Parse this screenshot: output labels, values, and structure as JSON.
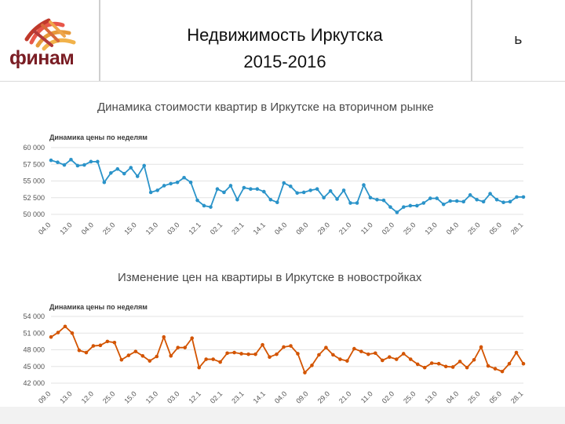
{
  "header": {
    "title_line1": "Недвижимость Иркутска",
    "title_line2": "2015-2016",
    "logo_text": "финам",
    "corner_glyph": "ь"
  },
  "colors": {
    "logo": "#7a1d24",
    "secondary_line": "#2a93c9",
    "new_build_line": "#d35400"
  },
  "chart_data": [
    {
      "type": "line",
      "title": "Динамика стоимости квартир в Иркутске на вторичном рынке",
      "subtitle": "Динамика цены по неделям",
      "ylim": [
        50000,
        60000
      ],
      "yticks": [
        "60 000",
        "57 500",
        "55 000",
        "52 500",
        "50 000"
      ],
      "xticks": [
        "04.0",
        "13.0",
        "04.0",
        "25.0",
        "15.0",
        "13.0",
        "03.0",
        "12.1",
        "02.1",
        "23.1",
        "14.1",
        "04.0",
        "08.0",
        "29.0",
        "21.0",
        "11.0",
        "02.0",
        "25.0",
        "13.0",
        "04.0",
        "25.0",
        "05.0",
        "28.1"
      ],
      "grid": true,
      "legend": "none",
      "series": [
        {
          "values": [
            58100,
            57800,
            57400,
            58200,
            57300,
            57400,
            57900,
            57900,
            54800,
            56200,
            56800,
            56100,
            57000,
            55700,
            57300,
            53300,
            53600,
            54300,
            54600,
            54800,
            55500,
            54800,
            52100,
            51300,
            51100,
            53800,
            53300,
            54300,
            52200,
            54000,
            53800,
            53800,
            53400,
            52200,
            51800,
            54700,
            54200,
            53200,
            53300,
            53600,
            53800,
            52500,
            53500,
            52300,
            53600,
            51700,
            51700,
            54400,
            52500,
            52200,
            52100,
            51100,
            50300,
            51100,
            51300,
            51300,
            51700,
            52400,
            52400,
            51500,
            52000,
            52000,
            51900,
            52900,
            52200,
            51900,
            53100,
            52200,
            51800,
            51900,
            52600,
            52600
          ]
        }
      ]
    },
    {
      "type": "line",
      "title": "Изменение цен на квартиры в Иркутске в новостройках",
      "subtitle": "Динамика цены по неделям",
      "ylim": [
        42000,
        54000
      ],
      "yticks": [
        "54 000",
        "51 000",
        "48 000",
        "45 000",
        "42 000"
      ],
      "xticks": [
        "09.0",
        "13.0",
        "12.0",
        "25.0",
        "15.0",
        "13.0",
        "03.0",
        "12.1",
        "02.1",
        "23.1",
        "14.1",
        "04.0",
        "09.0",
        "29.0",
        "21.0",
        "11.0",
        "02.0",
        "25.0",
        "13.0",
        "04.0",
        "25.0",
        "05.0",
        "28.1"
      ],
      "grid": true,
      "legend": "none",
      "series": [
        {
          "values": [
            50300,
            51100,
            52200,
            51000,
            47900,
            47500,
            48700,
            48800,
            49500,
            49300,
            46200,
            47000,
            47700,
            46900,
            46000,
            46800,
            50300,
            46900,
            48400,
            48400,
            50100,
            44800,
            46300,
            46300,
            45800,
            47400,
            47500,
            47300,
            47200,
            47200,
            48900,
            46700,
            47200,
            48500,
            48700,
            47300,
            43900,
            45200,
            47100,
            48400,
            47100,
            46300,
            46000,
            48200,
            47700,
            47200,
            47400,
            46100,
            46700,
            46300,
            47300,
            46300,
            45400,
            44800,
            45600,
            45500,
            45000,
            44900,
            45900,
            44800,
            46200,
            48500,
            45100,
            44600,
            44100,
            45500,
            47500,
            45500
          ]
        }
      ]
    }
  ]
}
